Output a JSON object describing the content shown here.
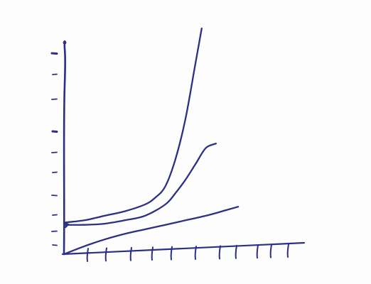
{
  "chart_data": {
    "type": "line",
    "title": "",
    "xlabel": "",
    "ylabel": "",
    "grid": false,
    "legend": "none",
    "xlim": [
      0,
      10
    ],
    "ylim": [
      0,
      10
    ],
    "x_tick_count": 10,
    "y_tick_count": 10,
    "series": [
      {
        "x": [
          0,
          1,
          2,
          3,
          4,
          4.5,
          5,
          5.5,
          6,
          6.5,
          6.8
        ],
        "values": [
          1.4,
          1.5,
          1.7,
          1.9,
          2.2,
          2.5,
          3.0,
          4.2,
          6.0,
          8.5,
          10.0
        ]
      },
      {
        "x": [
          0,
          1,
          2,
          3,
          4,
          5,
          5.5,
          6,
          6.5,
          7,
          7.5
        ],
        "values": [
          1.3,
          1.3,
          1.35,
          1.5,
          1.7,
          2.2,
          2.7,
          3.3,
          4.0,
          4.7,
          4.9
        ]
      },
      {
        "x": [
          0,
          1,
          2,
          3,
          4,
          5,
          6,
          7,
          8,
          8.6
        ],
        "values": [
          0.0,
          0.35,
          0.65,
          0.9,
          1.1,
          1.3,
          1.5,
          1.7,
          1.95,
          2.1
        ]
      }
    ],
    "colors": {
      "ink": "#2b2f86",
      "background": "#fdfdfd"
    }
  }
}
